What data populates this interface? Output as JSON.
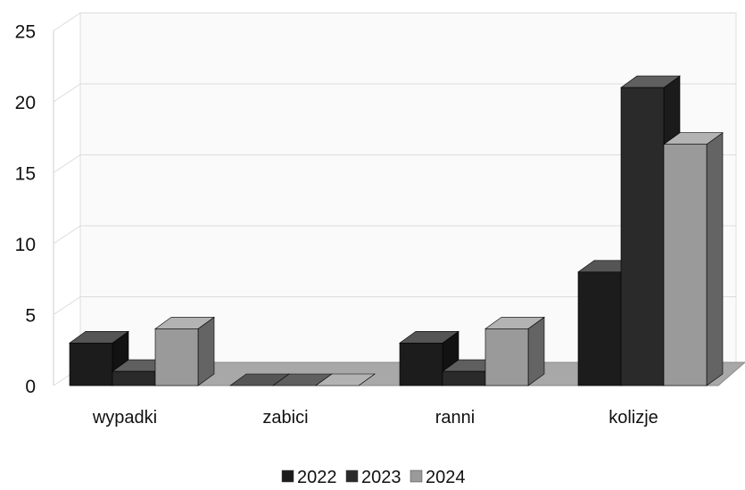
{
  "chart_data": {
    "type": "bar",
    "style": "3d-clustered-column",
    "categories": [
      "wypadki",
      "zabici",
      "ranni",
      "kolizje"
    ],
    "series": [
      {
        "name": "2022",
        "values": [
          3,
          0,
          3,
          8
        ],
        "color": "#1c1c1c"
      },
      {
        "name": "2023",
        "values": [
          1,
          0,
          1,
          21
        ],
        "color": "#2a2a2a"
      },
      {
        "name": "2024",
        "values": [
          4,
          0,
          4,
          17
        ],
        "color": "#9a9a9a"
      }
    ],
    "ylim": [
      0,
      25
    ],
    "yticks": [
      0,
      5,
      10,
      15,
      20,
      25
    ],
    "grid": true,
    "legend_position": "bottom"
  }
}
